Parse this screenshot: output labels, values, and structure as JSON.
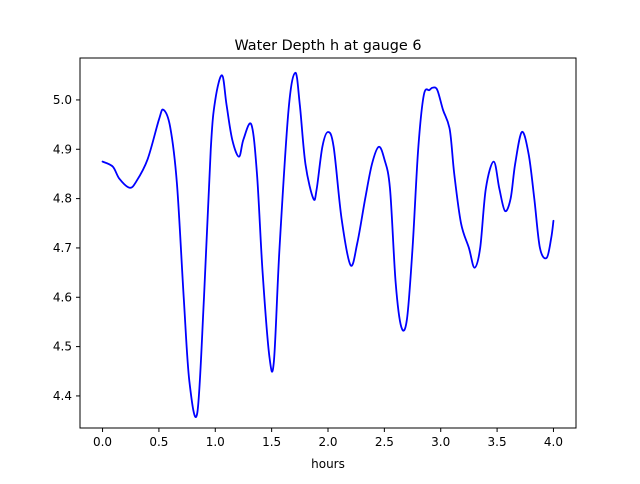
{
  "chart_data": {
    "type": "line",
    "title": "Water Depth h at gauge 6",
    "xlabel": "hours",
    "ylabel": "",
    "xlim": [
      -0.2,
      4.2
    ],
    "ylim": [
      4.335,
      5.085
    ],
    "grid": false,
    "x_ticks": [
      0.0,
      0.5,
      1.0,
      1.5,
      2.0,
      2.5,
      3.0,
      3.5,
      4.0
    ],
    "x_tick_labels": [
      "0.0",
      "0.5",
      "1.0",
      "1.5",
      "2.0",
      "2.5",
      "3.0",
      "3.5",
      "4.0"
    ],
    "y_ticks": [
      4.4,
      4.5,
      4.6,
      4.7,
      4.8,
      4.9,
      5.0
    ],
    "y_tick_labels": [
      "4.4",
      "4.5",
      "4.6",
      "4.7",
      "4.8",
      "4.9",
      "5.0"
    ],
    "series": [
      {
        "color": "#0000ff",
        "x": [
          0.0,
          0.09,
          0.15,
          0.24,
          0.3,
          0.4,
          0.5,
          0.54,
          0.6,
          0.66,
          0.72,
          0.77,
          0.84,
          0.9,
          0.96,
          1.0,
          1.06,
          1.1,
          1.15,
          1.21,
          1.25,
          1.32,
          1.37,
          1.42,
          1.48,
          1.52,
          1.57,
          1.65,
          1.71,
          1.75,
          1.8,
          1.87,
          1.9,
          1.95,
          2.0,
          2.05,
          2.12,
          2.2,
          2.26,
          2.33,
          2.39,
          2.45,
          2.5,
          2.55,
          2.6,
          2.65,
          2.7,
          2.75,
          2.8,
          2.85,
          2.9,
          2.93,
          2.97,
          3.02,
          3.08,
          3.12,
          3.18,
          3.25,
          3.3,
          3.35,
          3.4,
          3.47,
          3.52,
          3.57,
          3.62,
          3.66,
          3.72,
          3.78,
          3.83,
          3.88,
          3.94,
          3.98,
          4.0
        ],
        "y": [
          4.875,
          4.865,
          4.84,
          4.822,
          4.835,
          4.88,
          4.96,
          4.98,
          4.945,
          4.83,
          4.6,
          4.43,
          4.365,
          4.6,
          4.9,
          5.0,
          5.05,
          4.99,
          4.92,
          4.885,
          4.92,
          4.95,
          4.85,
          4.65,
          4.48,
          4.47,
          4.7,
          4.98,
          5.055,
          4.99,
          4.87,
          4.8,
          4.82,
          4.905,
          4.935,
          4.905,
          4.76,
          4.665,
          4.71,
          4.8,
          4.87,
          4.905,
          4.88,
          4.82,
          4.63,
          4.54,
          4.555,
          4.7,
          4.9,
          5.01,
          5.02,
          5.025,
          5.02,
          4.98,
          4.94,
          4.85,
          4.75,
          4.7,
          4.66,
          4.7,
          4.82,
          4.875,
          4.82,
          4.775,
          4.8,
          4.87,
          4.935,
          4.89,
          4.8,
          4.7,
          4.68,
          4.72,
          4.755
        ]
      }
    ]
  }
}
